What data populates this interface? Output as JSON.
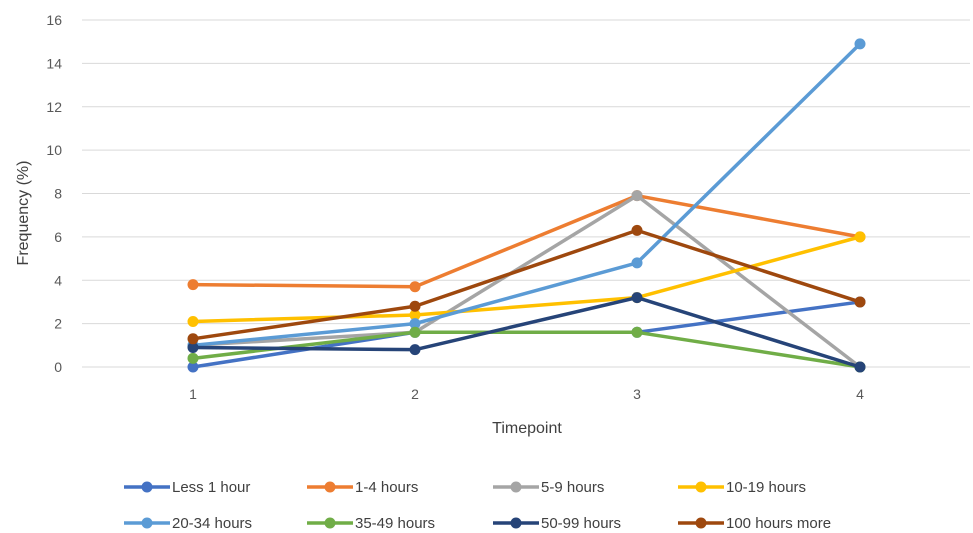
{
  "chart_data": {
    "type": "line",
    "title": "",
    "xlabel": "Timepoint",
    "ylabel": "Frequency (%)",
    "categories": [
      "1",
      "2",
      "3",
      "4"
    ],
    "ylim": [
      0,
      16
    ],
    "yticks": [
      "0",
      "2",
      "4",
      "6",
      "8",
      "10",
      "12",
      "14",
      "16"
    ],
    "grid": true,
    "legend_position": "bottom",
    "series": [
      {
        "name": "Less 1 hour",
        "color": "#4472C4",
        "values": [
          0,
          1.6,
          1.6,
          3
        ]
      },
      {
        "name": "1-4 hours",
        "color": "#ED7D31",
        "values": [
          3.8,
          3.7,
          7.9,
          6
        ]
      },
      {
        "name": "5-9 hours",
        "color": "#A5A5A5",
        "values": [
          1.0,
          1.6,
          7.9,
          0
        ]
      },
      {
        "name": "10-19 hours",
        "color": "#FFC000",
        "values": [
          2.1,
          2.4,
          3.2,
          6
        ]
      },
      {
        "name": "20-34 hours",
        "color": "#5B9BD5",
        "values": [
          1.0,
          2.0,
          4.8,
          14.9
        ]
      },
      {
        "name": "35-49 hours",
        "color": "#70AD47",
        "values": [
          0.4,
          1.6,
          1.6,
          0
        ]
      },
      {
        "name": "50-99 hours",
        "color": "#264478",
        "values": [
          0.9,
          0.8,
          3.2,
          0
        ]
      },
      {
        "name": "100 hours more",
        "color": "#9E480E",
        "values": [
          1.3,
          2.8,
          6.3,
          3
        ]
      }
    ]
  }
}
